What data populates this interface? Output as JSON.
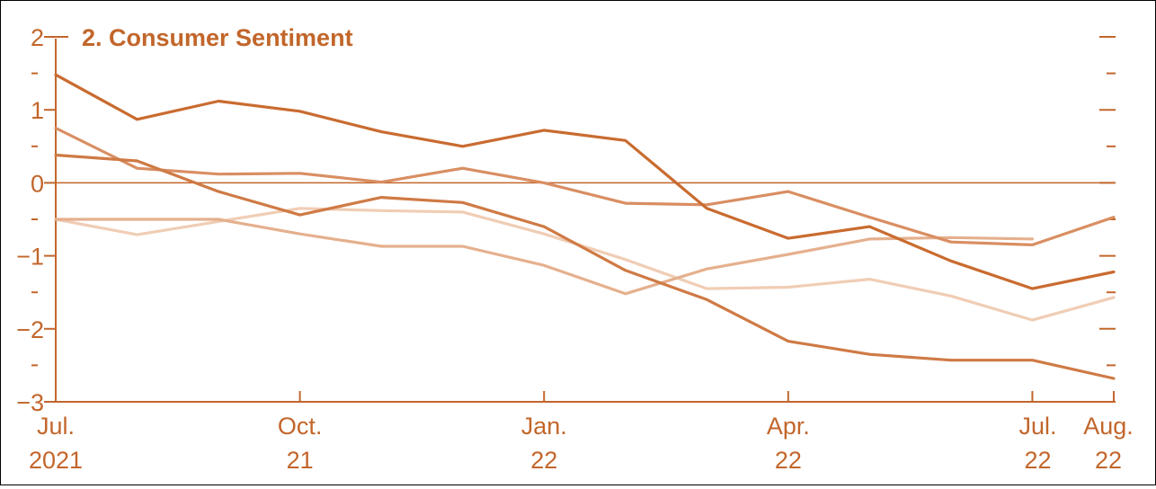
{
  "colors": {
    "axis": "#c2662b",
    "text": "#c2662b",
    "series": [
      "#c96b30",
      "#cf7a45",
      "#d98e62",
      "#e5b08e",
      "#f0cdb5"
    ]
  },
  "chart_data": {
    "type": "line",
    "title": "2. Consumer Sentiment",
    "title_prefix": "2",
    "xlabel": "",
    "ylabel": "",
    "ylim": [
      -3,
      2
    ],
    "yticks": [
      {
        "value": 2,
        "label": "2"
      },
      {
        "value": 1,
        "label": "1"
      },
      {
        "value": 0,
        "label": "0"
      },
      {
        "value": -1,
        "label": "−1"
      },
      {
        "value": -2,
        "label": "−2"
      },
      {
        "value": -3,
        "label": "−3"
      }
    ],
    "y_minor_ticks": [
      1.5,
      0.5,
      -0.5,
      -1.5,
      -2.5
    ],
    "zero_line": true,
    "grid": false,
    "x": [
      "Jul. 2021",
      "Aug. 2021",
      "Sep. 2021",
      "Oct. 2021",
      "Nov. 2021",
      "Dec. 2021",
      "Jan. 2022",
      "Feb. 2022",
      "Mar. 2022",
      "Apr. 2022",
      "May 2022",
      "Jun. 2022",
      "Jul. 2022",
      "Aug. 2022"
    ],
    "xticks": [
      {
        "index": 0,
        "line1": "Jul.",
        "line2": "2021"
      },
      {
        "index": 3,
        "line1": "Oct.",
        "line2": "21"
      },
      {
        "index": 6,
        "line1": "Jan.",
        "line2": "22"
      },
      {
        "index": 9,
        "line1": "Apr.",
        "line2": "22"
      },
      {
        "index": 12,
        "line1": "Jul.",
        "line2": "22"
      },
      {
        "index": 13,
        "line1": "Aug.",
        "line2": "22"
      }
    ],
    "series": [
      {
        "values": [
          1.48,
          0.87,
          1.12,
          0.98,
          0.7,
          0.5,
          0.72,
          0.58,
          -0.35,
          -0.76,
          -0.6,
          -1.07,
          -1.45,
          -1.22
        ]
      },
      {
        "values": [
          0.38,
          0.3,
          -0.12,
          -0.44,
          -0.2,
          -0.27,
          -0.6,
          -1.2,
          -1.6,
          -2.17,
          -2.35,
          -2.43,
          -2.43,
          -2.68
        ]
      },
      {
        "values": [
          0.75,
          0.2,
          0.12,
          0.13,
          0.01,
          0.2,
          0.0,
          -0.28,
          -0.3,
          -0.12,
          -0.47,
          -0.81,
          -0.85,
          -0.47
        ]
      },
      {
        "values": [
          -0.5,
          -0.5,
          -0.5,
          -0.7,
          -0.87,
          -0.87,
          -1.13,
          -1.52,
          -1.18,
          -0.98,
          -0.77,
          -0.75,
          -0.77,
          null
        ]
      },
      {
        "values": [
          -0.5,
          -0.71,
          -0.53,
          -0.35,
          -0.38,
          -0.4,
          -0.7,
          -1.05,
          -1.45,
          -1.43,
          -1.32,
          -1.55,
          -1.88,
          -1.57
        ]
      }
    ]
  }
}
